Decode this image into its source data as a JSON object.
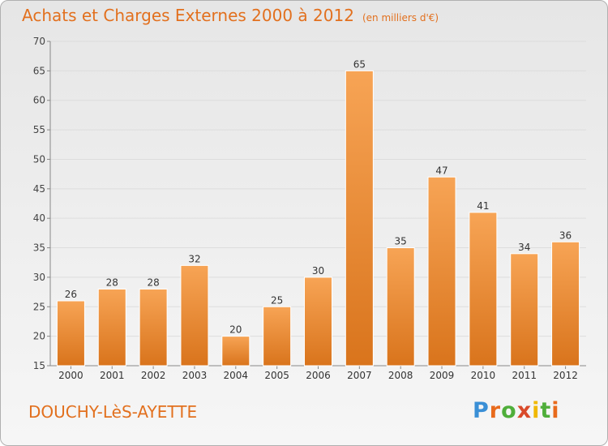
{
  "header": {
    "title": "Achats et Charges Externes 2000 à 2012",
    "subtitle": "(en milliers d'€)"
  },
  "footer": {
    "commune": "DOUCHY-LèS-AYETTE",
    "logo": "Proxiti"
  },
  "colors": {
    "title": "#e2701e",
    "bar_top": "#f7a455",
    "bar_bottom": "#d9741c",
    "grid": "#dddddd"
  },
  "chart_data": {
    "type": "bar",
    "title": "Achats et Charges Externes 2000 à 2012",
    "subtitle": "(en milliers d'€)",
    "categories": [
      "2000",
      "2001",
      "2002",
      "2003",
      "2004",
      "2005",
      "2006",
      "2007",
      "2008",
      "2009",
      "2010",
      "2011",
      "2012"
    ],
    "values": [
      26,
      28,
      28,
      32,
      20,
      25,
      30,
      65,
      35,
      47,
      41,
      34,
      36
    ],
    "xlabel": "",
    "ylabel": "",
    "ylim": [
      15,
      70
    ],
    "yticks": [
      15,
      20,
      25,
      30,
      35,
      40,
      45,
      50,
      55,
      60,
      65,
      70
    ],
    "grid": true,
    "data_labels": true
  }
}
